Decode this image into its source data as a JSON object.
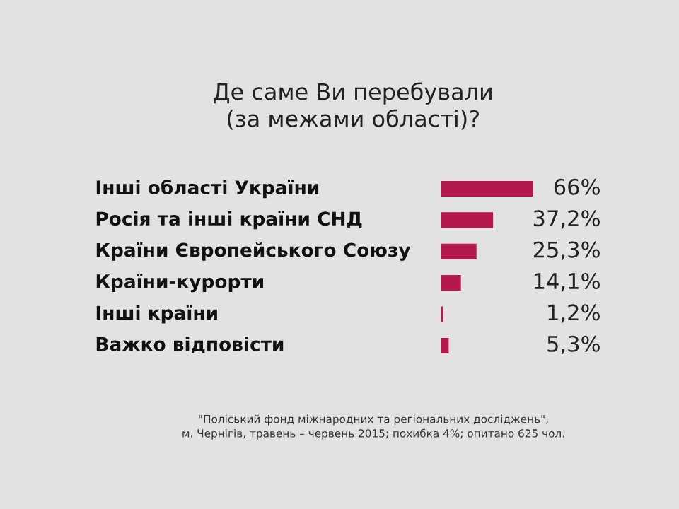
{
  "chart_data": {
    "type": "bar",
    "orientation": "horizontal",
    "title": "Де саме Ви перебували\n(за межами області)?",
    "categories": [
      "Інші області України",
      "Росія та інші країни СНД",
      "Країни Європейського Союзу",
      "Країни-курорти",
      "Інші країни",
      "Важко відповісти"
    ],
    "values": [
      66,
      37.2,
      25.3,
      14.1,
      1.2,
      5.3
    ],
    "value_labels": [
      "66%",
      "37,2%",
      "25,3%",
      "14,1%",
      "1,2%",
      "5,3%"
    ],
    "color": "#b5184a",
    "annotations": [
      "\"Поліський фонд міжнародних та регіональних досліджень\",",
      "м. Чернігів, травень – червень 2015; похибка 4%; опитано 625 чол."
    ]
  }
}
